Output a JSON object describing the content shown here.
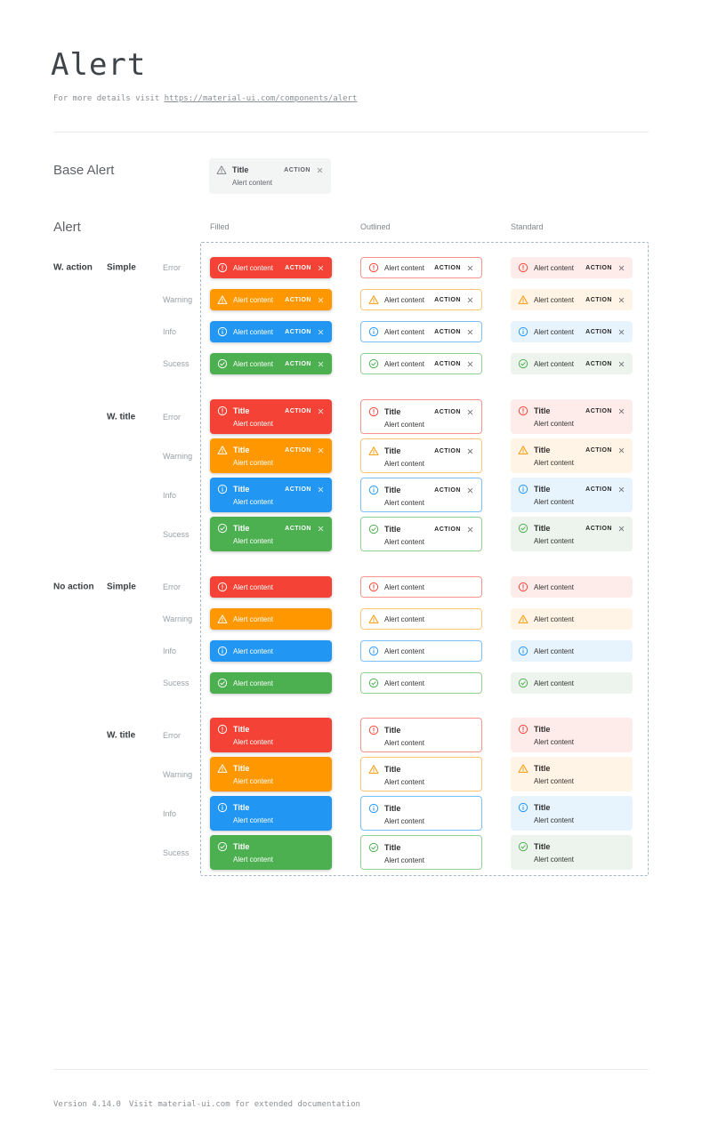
{
  "header": {
    "title": "Alert",
    "subtitle_prefix": "For more details visit ",
    "subtitle_link": "https://material-ui.com/components/alert"
  },
  "base_alert": {
    "section_label": "Base Alert",
    "title": "Title",
    "content": "Alert content",
    "action_label": "ACTION"
  },
  "grid": {
    "section_label": "Alert",
    "columns": [
      {
        "id": "filled",
        "label": "Filled"
      },
      {
        "id": "outlined",
        "label": "Outlined"
      },
      {
        "id": "standard",
        "label": "Standard"
      }
    ],
    "severities": [
      {
        "id": "error",
        "label": "Error"
      },
      {
        "id": "warning",
        "label": "Warning"
      },
      {
        "id": "info",
        "label": "Info"
      },
      {
        "id": "success",
        "label": "Sucess"
      }
    ],
    "groups": [
      {
        "action_label": "W. action",
        "variant_label": "Simple",
        "has_action": true,
        "has_title": false
      },
      {
        "action_label": "",
        "variant_label": "W. title",
        "has_action": true,
        "has_title": true
      },
      {
        "action_label": "No action",
        "variant_label": "Simple",
        "has_action": false,
        "has_title": false
      },
      {
        "action_label": "",
        "variant_label": "W. title",
        "has_action": false,
        "has_title": true
      }
    ],
    "alert_title": "Title",
    "alert_content": "Alert content",
    "action_label": "ACTION"
  },
  "colors": {
    "error": {
      "main": "#f44336",
      "standard_bg": "#fdecea",
      "outlined_border": "#f6958c"
    },
    "warning": {
      "main": "#ff9800",
      "standard_bg": "#fff4e5",
      "outlined_border": "#ffc570"
    },
    "info": {
      "main": "#2196f3",
      "standard_bg": "#e8f4fd",
      "outlined_border": "#7cc0f7"
    },
    "success": {
      "main": "#4caf50",
      "standard_bg": "#edf4ed",
      "outlined_border": "#93cf95"
    }
  },
  "footer": {
    "version": "Version 4.14.0",
    "note": "Visit material-ui.com for extended documentation"
  }
}
